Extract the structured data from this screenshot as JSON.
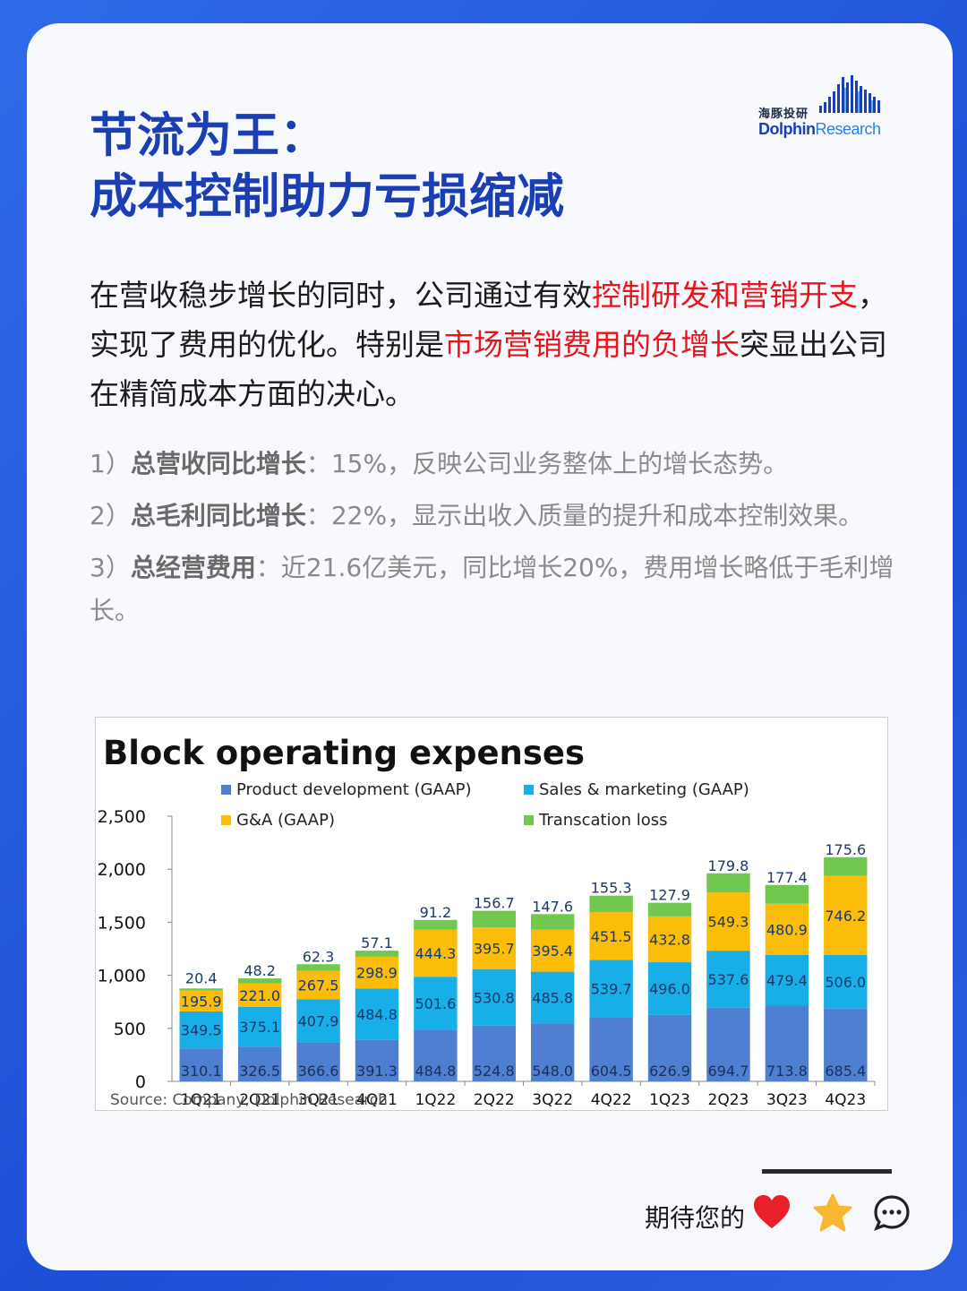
{
  "header": {
    "title_line1": "节流为王：",
    "title_line2": "成本控制助力亏损缩减",
    "logo_cn": "海豚投研",
    "logo_en_a": "Dolphin",
    "logo_en_b": "Research"
  },
  "intro": {
    "p1": "在营收稳步增长的同时，公司通过有效",
    "h1": "控制研发和营销开支",
    "p2": "，实现了费用的优化。特别是",
    "h2": "市场营销费用的负增长",
    "p3": "突显出公司在精简成本方面的决心。"
  },
  "points": [
    {
      "num": "1）",
      "label": "总营收同比增长",
      "text": "：15%，反映公司业务整体上的增长态势。"
    },
    {
      "num": "2）",
      "label": "总毛利同比增长",
      "text": "：22%，显示出收入质量的提升和成本控制效果。"
    },
    {
      "num": "3）",
      "label": "总经营费用",
      "text": "：近21.6亿美元，同比增长20%，费用增长略低于毛利增长。"
    }
  ],
  "footer": {
    "text": "期待您的"
  },
  "chart_data": {
    "type": "bar",
    "stacked": true,
    "title": "Block operating expenses",
    "source": "Source: Company, Dolphin Research",
    "categories": [
      "1Q21",
      "2Q21",
      "3Q21",
      "4Q21",
      "1Q22",
      "2Q22",
      "3Q22",
      "4Q22",
      "1Q23",
      "2Q23",
      "3Q23",
      "4Q23"
    ],
    "ylim": [
      0,
      2500
    ],
    "yticks": [
      "0",
      "500",
      "1,000",
      "1,500",
      "2,000",
      "2,500"
    ],
    "legend_placement": "top",
    "series": [
      {
        "name": "Product development (GAAP)",
        "color": "#4f7fd0",
        "values": [
          310.1,
          326.5,
          366.6,
          391.3,
          484.8,
          524.8,
          548.0,
          604.5,
          626.9,
          694.7,
          713.8,
          685.4
        ]
      },
      {
        "name": "Sales & marketing (GAAP)",
        "color": "#18aee8",
        "values": [
          349.5,
          375.1,
          407.9,
          484.8,
          501.6,
          530.8,
          485.8,
          539.7,
          496.0,
          537.6,
          479.4,
          506.0
        ]
      },
      {
        "name": "G&A (GAAP)",
        "color": "#fbbd0a",
        "values": [
          195.9,
          221.0,
          267.5,
          298.9,
          444.3,
          395.7,
          395.4,
          451.5,
          432.8,
          549.3,
          480.9,
          746.2
        ]
      },
      {
        "name": "Transcation loss",
        "color": "#72c84e",
        "values": [
          20.4,
          48.2,
          62.3,
          57.1,
          91.2,
          156.7,
          147.6,
          155.3,
          127.9,
          179.8,
          177.4,
          175.6
        ]
      }
    ]
  }
}
